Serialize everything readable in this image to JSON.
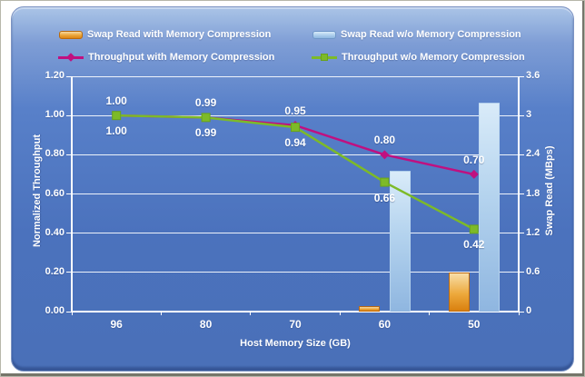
{
  "legend": [
    {
      "label": "Swap Read with Memory Compression",
      "type": "bar",
      "color": "#E8912D"
    },
    {
      "label": "Swap Read w/o Memory Compression",
      "type": "bar",
      "color": "#A6C9E8"
    },
    {
      "label": "Throughput with Memory Compression",
      "type": "line",
      "marker": "diamond",
      "color": "#C01080"
    },
    {
      "label": "Throughput w/o Memory Compression",
      "type": "line",
      "marker": "square",
      "color": "#7DBA28"
    }
  ],
  "chart_data": {
    "type": "bar+line combo",
    "categories": [
      "96",
      "80",
      "70",
      "60",
      "50"
    ],
    "xlabel": "Host Memory Size (GB)",
    "left_axis": {
      "label": "Normalized Throughput",
      "min": 0,
      "max": 1.2,
      "ticks": [
        "0.00",
        "0.20",
        "0.40",
        "0.60",
        "0.80",
        "1.00",
        "1.20"
      ]
    },
    "right_axis": {
      "label": "Swap Read (MBps)",
      "min": 0,
      "max": 3.6,
      "ticks": [
        "0",
        "0.6",
        "1.2",
        "1.8",
        "2.4",
        "3",
        "3.6"
      ]
    },
    "grid": true,
    "legend_position": "top",
    "series": [
      {
        "name": "Swap Read with Memory Compression",
        "type": "bar",
        "axis": "right",
        "slot": 0,
        "color": "#E8912D",
        "values": [
          0,
          0,
          0,
          0.08,
          0.6
        ]
      },
      {
        "name": "Swap Read w/o Memory Compression",
        "type": "bar",
        "axis": "right",
        "slot": 1,
        "color": "#A6C9E8",
        "values": [
          0,
          0,
          0,
          2.15,
          3.2
        ]
      },
      {
        "name": "Throughput with Memory Compression",
        "type": "line",
        "axis": "left",
        "marker": "diamond",
        "color": "#C01080",
        "values": [
          1.0,
          0.99,
          0.95,
          0.8,
          0.7
        ],
        "labels": [
          "1.00",
          "0.99",
          "0.95",
          "0.80",
          "0.70"
        ],
        "label_position": "above"
      },
      {
        "name": "Throughput w/o Memory Compression",
        "type": "line",
        "axis": "left",
        "marker": "square",
        "color": "#7DBA28",
        "values": [
          1.0,
          0.99,
          0.94,
          0.66,
          0.42
        ],
        "labels": [
          "1.00",
          "0.99",
          "0.94",
          "0.66",
          "0.42"
        ],
        "label_position": "below"
      }
    ]
  }
}
